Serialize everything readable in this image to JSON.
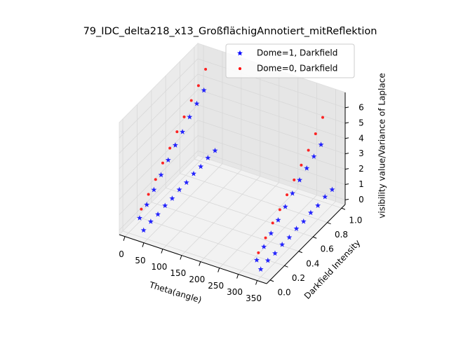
{
  "chart_data": {
    "type": "scatter3d",
    "title": "79_IDC_delta218_x13_GroßflächigAnnotiert_mitReflektion",
    "xlabel": "Theta(angle)",
    "ylabel": "Darkfield Intensity",
    "zlabel": "visibility value/Variance of Laplace",
    "xlim": [
      -15,
      375
    ],
    "ylim": [
      -0.05,
      1.05
    ],
    "zlim": [
      -0.3,
      7
    ],
    "xticks": [
      0,
      50,
      100,
      150,
      200,
      250,
      300,
      350
    ],
    "yticks": [
      {
        "value": 0,
        "label": "0.0"
      },
      {
        "value": 0.2,
        "label": "0.2"
      },
      {
        "value": 0.4,
        "label": "0.4"
      },
      {
        "value": 0.6,
        "label": "0.6"
      },
      {
        "value": 0.8,
        "label": "0.8"
      },
      {
        "value": 1,
        "label": "1.0"
      }
    ],
    "zticks": [
      0,
      1,
      2,
      3,
      4,
      5,
      6
    ],
    "legend": "upper right",
    "grid": true,
    "series": [
      {
        "name": "Dome=1, Darkfield",
        "color": "#0000ff",
        "marker": "star",
        "x": [
          20,
          20,
          20,
          20,
          20,
          20,
          20,
          20,
          20,
          20,
          40,
          40,
          40,
          40,
          40,
          40,
          40,
          40,
          40,
          40,
          40,
          330,
          330,
          330,
          330,
          330,
          330,
          330,
          330,
          330,
          330,
          350,
          350,
          350,
          350,
          350,
          350,
          350,
          350,
          350,
          350,
          350
        ],
        "y": [
          0.05,
          0.15,
          0.25,
          0.35,
          0.45,
          0.55,
          0.65,
          0.75,
          0.85,
          0.95,
          0,
          0.1,
          0.2,
          0.3,
          0.4,
          0.5,
          0.6,
          0.7,
          0.8,
          0.9,
          1,
          0.05,
          0.15,
          0.25,
          0.35,
          0.45,
          0.55,
          0.65,
          0.75,
          0.85,
          0.95,
          0,
          0.1,
          0.2,
          0.3,
          0.4,
          0.5,
          0.6,
          0.7,
          0.8,
          0.9,
          1
        ],
        "z": [
          0.6,
          1,
          1.5,
          2,
          2.5,
          3,
          3.4,
          3.9,
          4.3,
          4.7,
          0.2,
          0.3,
          0.3,
          0.4,
          0.4,
          0.5,
          0.5,
          0.6,
          0.6,
          0.7,
          0.7,
          0.4,
          0.8,
          1.2,
          1.6,
          2,
          2.4,
          2.8,
          3.1,
          3.4,
          3.7,
          0.2,
          0.3,
          0.3,
          0.4,
          0.4,
          0.5,
          0.5,
          0.6,
          0.6,
          0.7,
          0.7
        ]
      },
      {
        "name": "Dome=0, Darkfield",
        "color": "#ff0000",
        "marker": "circle",
        "x": [
          15,
          15,
          15,
          15,
          15,
          15,
          15,
          15,
          15,
          15,
          325,
          325,
          325,
          325,
          325,
          325,
          325,
          325,
          325,
          325
        ],
        "y": [
          0.1,
          0.2,
          0.3,
          0.4,
          0.5,
          0.6,
          0.7,
          0.8,
          0.9,
          1,
          0.1,
          0.2,
          0.3,
          0.4,
          0.5,
          0.6,
          0.7,
          0.8,
          0.9,
          1
        ],
        "z": [
          0.9,
          1.4,
          1.9,
          2.5,
          3,
          3.6,
          4.1,
          4.7,
          5.2,
          5.8,
          0.6,
          1.1,
          1.6,
          2,
          2.5,
          3,
          3.5,
          4,
          4.6,
          5.2
        ]
      }
    ]
  }
}
